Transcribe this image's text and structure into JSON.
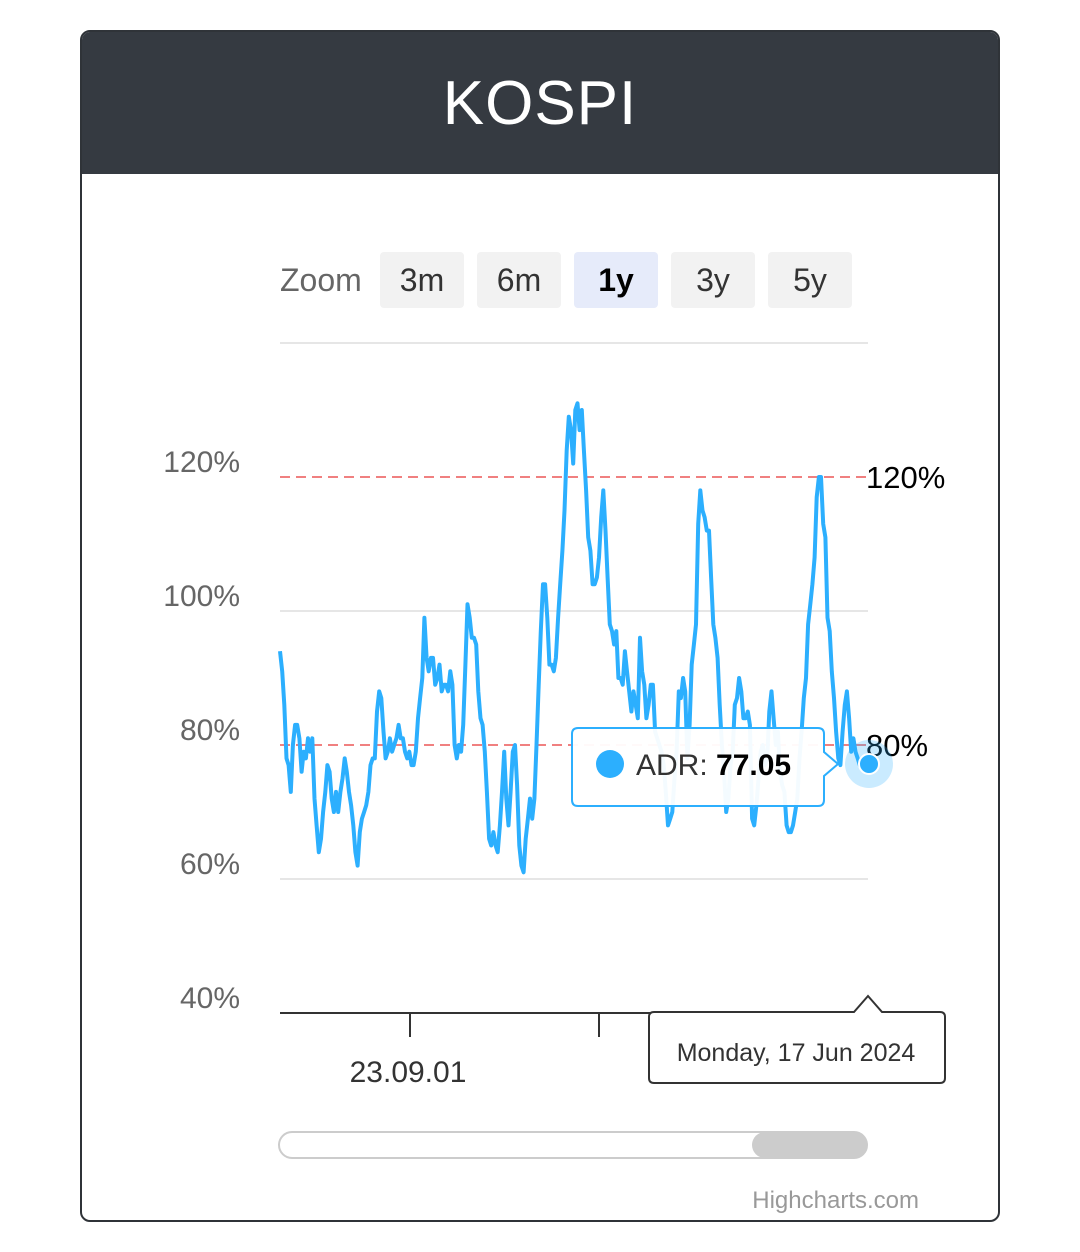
{
  "header": {
    "title": "KOSPI"
  },
  "zoom": {
    "label": "Zoom",
    "buttons": [
      "3m",
      "6m",
      "1y",
      "3y",
      "5y"
    ],
    "active": "1y"
  },
  "chart_data": {
    "type": "line",
    "series": [
      {
        "name": "ADR",
        "color": "#2caffe",
        "values": [
          94,
          91,
          86,
          78,
          77,
          73,
          80,
          83,
          83,
          81,
          76,
          79,
          78,
          81,
          79,
          81,
          72,
          68,
          64,
          66,
          70,
          73,
          77,
          76,
          72,
          70,
          73,
          70,
          73,
          75,
          78,
          76,
          73,
          71,
          68,
          64,
          62,
          67,
          69,
          70,
          71,
          73,
          77,
          78,
          78,
          85,
          88,
          87,
          82,
          78,
          79,
          81,
          79,
          80,
          81,
          83,
          81,
          81,
          79,
          78,
          79,
          77,
          77,
          79,
          84,
          87,
          90,
          99,
          93,
          91,
          93,
          93,
          89,
          90,
          92,
          88,
          89,
          89,
          88,
          91,
          89,
          80,
          78,
          80,
          79,
          83,
          92,
          101,
          99,
          96,
          96,
          95,
          88,
          84,
          83,
          79,
          73,
          66,
          65,
          67,
          65,
          64,
          68,
          73,
          79,
          72,
          68,
          73,
          79,
          80,
          74,
          65,
          62,
          61,
          66,
          69,
          72,
          69,
          72,
          80,
          89,
          97,
          104,
          104,
          99,
          92,
          92,
          91,
          93,
          99,
          104,
          109,
          115,
          124,
          129,
          127,
          122,
          130,
          131,
          127,
          130,
          124,
          118,
          111,
          109,
          104,
          104,
          105,
          108,
          114,
          118,
          112,
          105,
          98,
          97,
          95,
          97,
          90,
          90,
          89,
          94,
          91,
          88,
          85,
          88,
          86,
          84,
          96,
          91,
          89,
          84,
          86,
          89,
          89,
          82,
          81,
          80,
          79,
          77,
          73,
          68,
          69,
          70,
          75,
          79,
          88,
          87,
          90,
          88,
          78,
          83,
          92,
          95,
          98,
          113,
          118,
          115,
          114,
          112,
          112,
          105,
          98,
          96,
          93,
          86,
          80,
          76,
          70,
          72,
          77,
          79,
          86,
          87,
          90,
          88,
          84,
          84,
          85,
          83,
          69,
          68,
          71,
          75,
          79,
          80,
          77,
          78,
          85,
          88,
          84,
          80,
          82,
          76,
          74,
          73,
          68,
          67,
          67,
          68,
          70,
          72,
          78,
          82,
          87,
          90,
          98,
          101,
          104,
          108,
          117,
          120,
          120,
          113,
          111,
          99,
          97,
          91,
          87,
          82,
          78,
          77,
          82,
          86,
          88,
          84,
          79,
          81,
          79,
          78,
          77,
          77
        ],
        "last_value": "77.05"
      }
    ],
    "yaxis": {
      "ticks": [
        "120%",
        "100%",
        "80%",
        "60%",
        "40%"
      ],
      "min": 40,
      "max": 140
    },
    "xaxis": {
      "ticks": [
        "23.09.01"
      ]
    },
    "plotlines": [
      {
        "value": 120,
        "label": "120%",
        "color": "#f08080"
      },
      {
        "value": 80,
        "label": "80%",
        "color": "#f08080"
      }
    ],
    "tooltip": {
      "series": "ADR",
      "value": "77.05",
      "date": "Monday, 17 Jun 2024"
    }
  },
  "credit": "Highcharts.com"
}
